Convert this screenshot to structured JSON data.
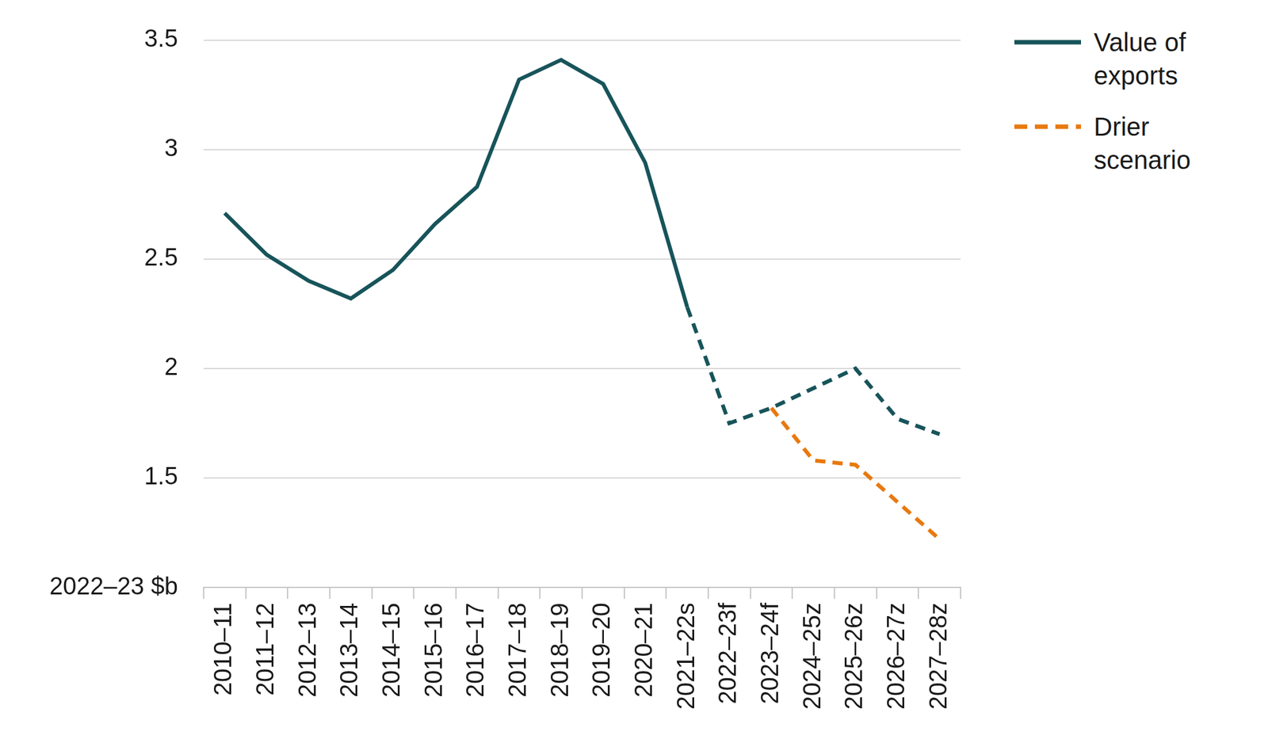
{
  "chart_data": {
    "type": "line",
    "y_label": "2022–23 $b",
    "categories": [
      "2010–11",
      "2011–12",
      "2012–13",
      "2013–14",
      "2014–15",
      "2015–16",
      "2016–17",
      "2017–18",
      "2018–19",
      "2019–20",
      "2020–21",
      "2021–22s",
      "2022–23f",
      "2023–24f",
      "2024–25z",
      "2025–26z",
      "2026–27z",
      "2027–28z"
    ],
    "series": [
      {
        "name": "Value of exports",
        "color": "#17545a",
        "line_style": "solid",
        "values": [
          2.71,
          2.52,
          2.4,
          2.32,
          2.45,
          2.66,
          2.83,
          3.32,
          3.41,
          3.3,
          2.94,
          2.28,
          1.75,
          1.82,
          1.91,
          2.0,
          1.77,
          1.7
        ]
      },
      {
        "name": "Drier scenario",
        "color": "#e8790f",
        "line_style": "dashed",
        "values": [
          null,
          null,
          null,
          null,
          null,
          null,
          null,
          null,
          null,
          null,
          null,
          null,
          null,
          1.82,
          1.58,
          1.56,
          1.39,
          1.22
        ]
      }
    ],
    "ylim": [
      1,
      3.5
    ],
    "yticks": [
      1.5,
      2,
      2.5,
      3,
      3.5
    ],
    "grid": true,
    "legend": "right"
  }
}
